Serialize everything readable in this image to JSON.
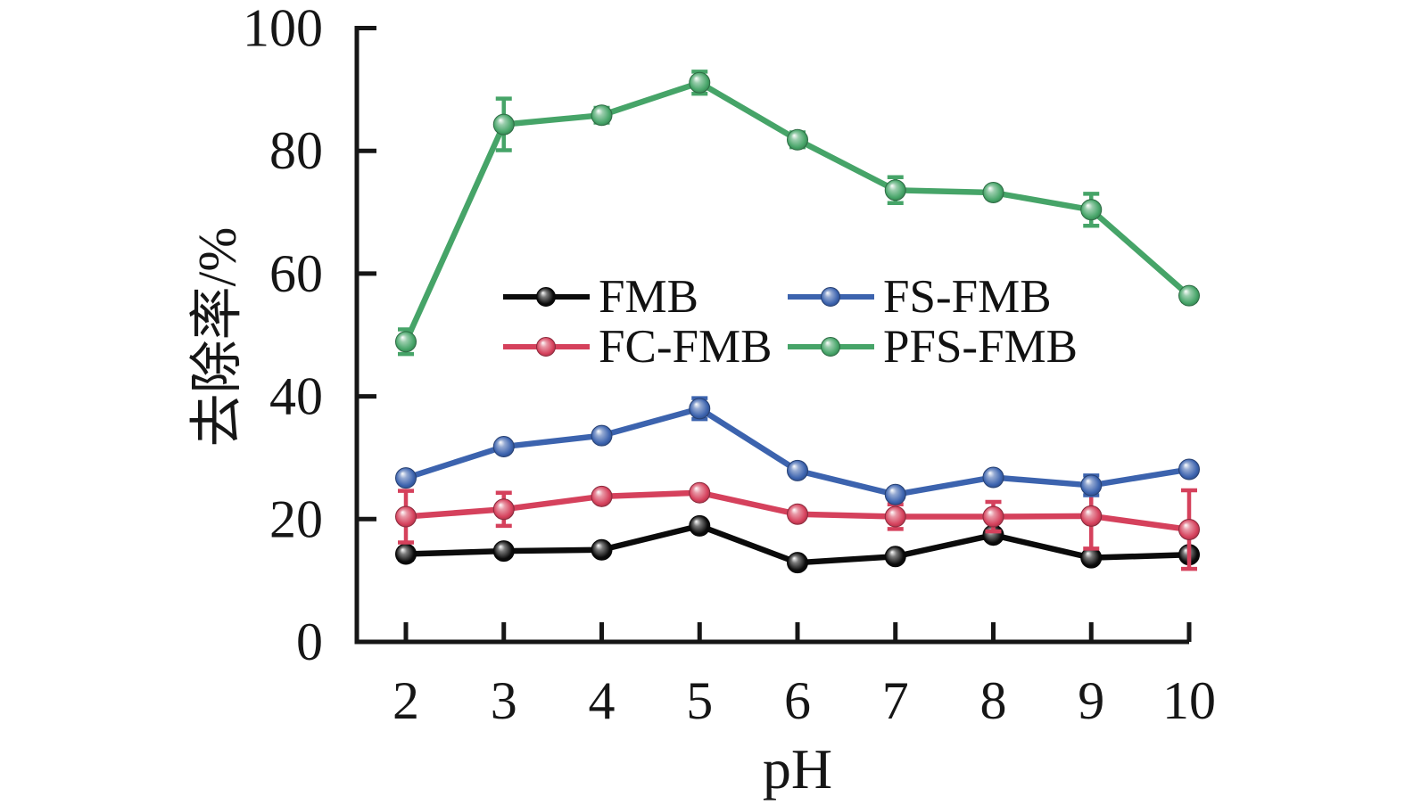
{
  "chart_data": {
    "type": "line",
    "title": "",
    "xlabel": "pH",
    "ylabel": "去除率/%",
    "x": [
      2,
      3,
      4,
      5,
      6,
      7,
      8,
      9,
      10
    ],
    "x_ticks": [
      2,
      3,
      4,
      5,
      6,
      7,
      8,
      9,
      10
    ],
    "y_ticks": [
      0,
      20,
      40,
      60,
      80,
      100
    ],
    "ylim": [
      0,
      100
    ],
    "grid": false,
    "legend_position": "center",
    "error_bars": true,
    "marker_style": "3d-ball",
    "series": [
      {
        "name": "FMB",
        "color": "#0b0b0b",
        "values": [
          14.3,
          14.8,
          15.0,
          18.9,
          12.9,
          13.9,
          17.4,
          13.7,
          14.2
        ],
        "errors": [
          0.9,
          0.5,
          0.5,
          0.5,
          0.5,
          0.5,
          0.5,
          0.5,
          0.5
        ]
      },
      {
        "name": "FC-FMB",
        "color": "#d5415c",
        "values": [
          20.4,
          21.6,
          23.7,
          24.3,
          20.8,
          20.4,
          20.4,
          20.5,
          18.3
        ],
        "errors": [
          4.2,
          2.7,
          0.6,
          0.6,
          0.6,
          2.0,
          2.4,
          5.3,
          6.4
        ]
      },
      {
        "name": "FS-FMB",
        "color": "#3c63ae",
        "values": [
          26.7,
          31.8,
          33.6,
          38.0,
          27.9,
          24.0,
          26.8,
          25.5,
          28.1
        ],
        "errors": [
          0.8,
          0.6,
          0.7,
          1.7,
          0.6,
          0.7,
          0.8,
          1.6,
          0.7
        ]
      },
      {
        "name": "PFS-FMB",
        "color": "#46a468",
        "values": [
          48.9,
          84.3,
          85.8,
          91.1,
          81.8,
          73.6,
          73.2,
          70.4,
          56.4
        ],
        "errors": [
          2.0,
          4.2,
          1.2,
          1.8,
          1.2,
          2.1,
          0.9,
          2.6,
          0.9
        ]
      }
    ],
    "legend_display_order": [
      0,
      2,
      1,
      3
    ]
  }
}
